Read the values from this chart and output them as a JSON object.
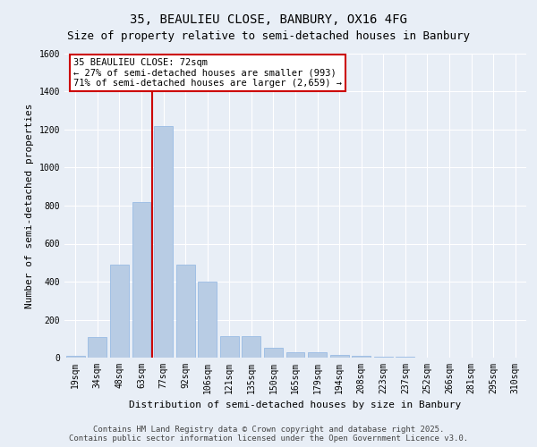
{
  "title1": "35, BEAULIEU CLOSE, BANBURY, OX16 4FG",
  "title2": "Size of property relative to semi-detached houses in Banbury",
  "xlabel": "Distribution of semi-detached houses by size in Banbury",
  "ylabel": "Number of semi-detached properties",
  "categories": [
    "19sqm",
    "34sqm",
    "48sqm",
    "63sqm",
    "77sqm",
    "92sqm",
    "106sqm",
    "121sqm",
    "135sqm",
    "150sqm",
    "165sqm",
    "179sqm",
    "194sqm",
    "208sqm",
    "223sqm",
    "237sqm",
    "252sqm",
    "266sqm",
    "281sqm",
    "295sqm",
    "310sqm"
  ],
  "values": [
    10,
    110,
    490,
    820,
    1220,
    490,
    400,
    115,
    115,
    50,
    30,
    30,
    15,
    10,
    5,
    5,
    2,
    1,
    1,
    0,
    0
  ],
  "bar_color": "#b8cce4",
  "bar_edge_color": "#8db4e2",
  "background_color": "#e8eef6",
  "grid_color": "#ffffff",
  "red_line_index": 4,
  "annotation_line1": "35 BEAULIEU CLOSE: 72sqm",
  "annotation_line2": "← 27% of semi-detached houses are smaller (993)",
  "annotation_line3": "71% of semi-detached houses are larger (2,659) →",
  "annotation_box_color": "#ffffff",
  "annotation_border_color": "#cc0000",
  "ylim": [
    0,
    1600
  ],
  "yticks": [
    0,
    200,
    400,
    600,
    800,
    1000,
    1200,
    1400,
    1600
  ],
  "footer_text": "Contains HM Land Registry data © Crown copyright and database right 2025.\nContains public sector information licensed under the Open Government Licence v3.0.",
  "title1_fontsize": 10,
  "title2_fontsize": 9,
  "xlabel_fontsize": 8,
  "ylabel_fontsize": 8,
  "tick_fontsize": 7,
  "annotation_fontsize": 7.5,
  "footer_fontsize": 6.5
}
